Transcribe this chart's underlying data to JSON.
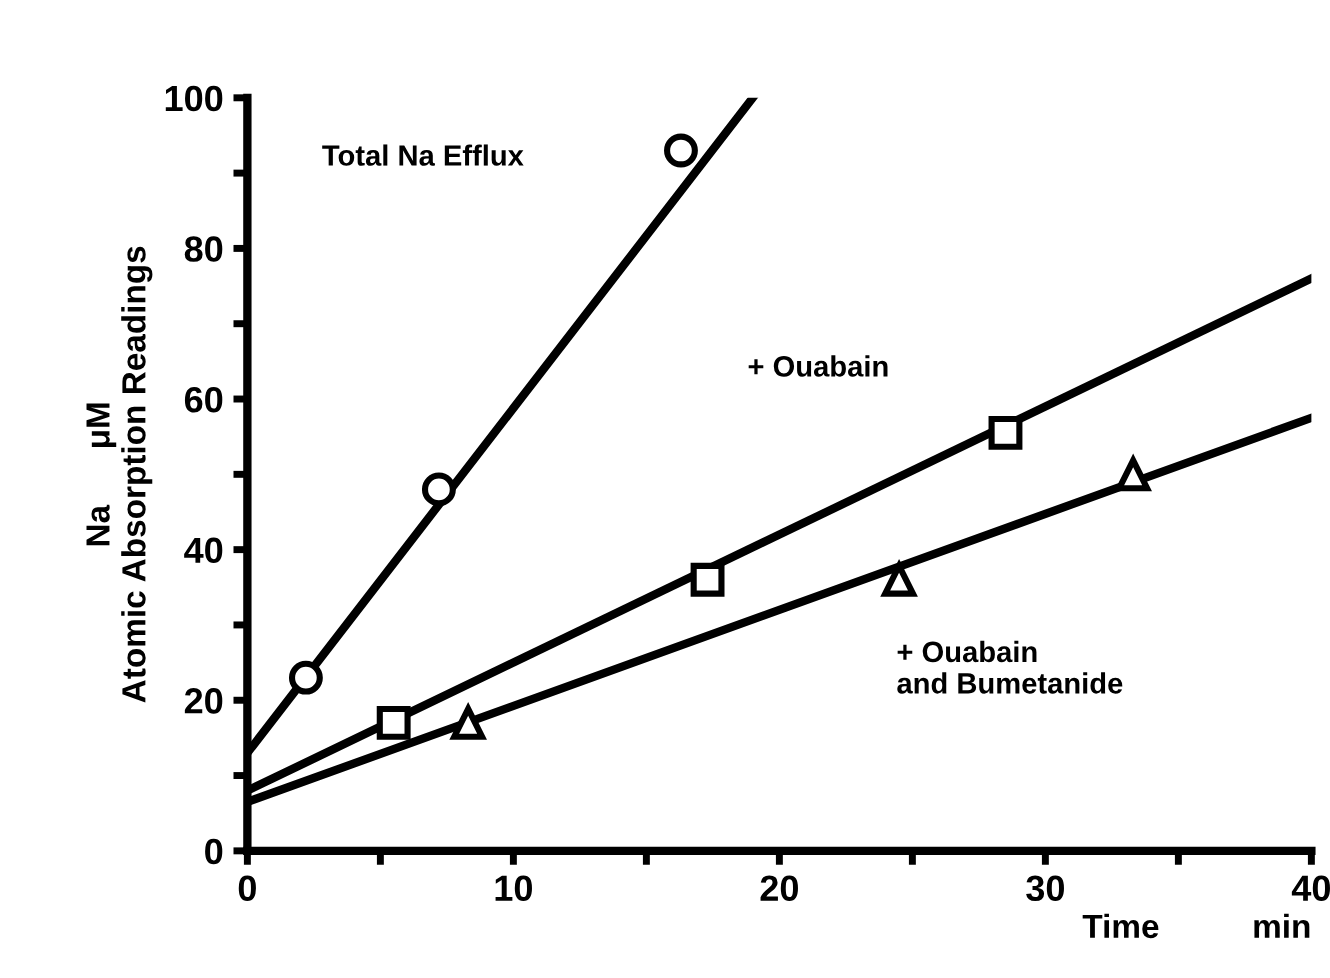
{
  "chart_data": {
    "type": "scatter",
    "xlabel": "Time          min",
    "ylabel": "Na      μM\nAtomic Absorption Readings",
    "xlim": [
      0,
      40
    ],
    "ylim": [
      0,
      100
    ],
    "xticks": [
      0,
      {
        "value": 5,
        "label": null
      },
      10,
      {
        "value": 15,
        "label": null
      },
      20,
      {
        "value": 25,
        "label": null
      },
      30,
      {
        "value": 35,
        "label": null
      },
      40
    ],
    "yticks": [
      0,
      {
        "value": 10,
        "label": null
      },
      20,
      {
        "value": 30,
        "label": null
      },
      40,
      {
        "value": 50,
        "label": null
      },
      60,
      {
        "value": 70,
        "label": null
      },
      80,
      {
        "value": 90,
        "label": null
      },
      100
    ],
    "grid": false,
    "series": [
      {
        "marker": "circle",
        "color": "#000000",
        "x": [
          2.2,
          7.2,
          16.3
        ],
        "values": [
          23,
          48,
          93
        ]
      },
      {
        "marker": "square",
        "color": "#000000",
        "x": [
          5.5,
          17.3,
          28.5
        ],
        "values": [
          17,
          36,
          55.5
        ]
      },
      {
        "marker": "triangle",
        "color": "#000000",
        "x": [
          8.3,
          24.5,
          33.3
        ],
        "values": [
          17,
          36,
          50
        ]
      },
      {
        "type": "line",
        "marker": "none",
        "line_style": "solid",
        "color": "#000000",
        "x": [
          0,
          19
        ],
        "values": [
          13,
          100
        ]
      },
      {
        "type": "line",
        "marker": "none",
        "line_style": "solid",
        "color": "#000000",
        "x": [
          0,
          40
        ],
        "values": [
          8,
          76
        ]
      },
      {
        "type": "line",
        "marker": "none",
        "line_style": "solid",
        "color": "#000000",
        "x": [
          0,
          40
        ],
        "values": [
          6.5,
          57.5
        ]
      }
    ],
    "annotations": [
      "Total Na Efflux",
      "+ Ouabain",
      "+ Ouabain\nand Bumetanide"
    ]
  }
}
